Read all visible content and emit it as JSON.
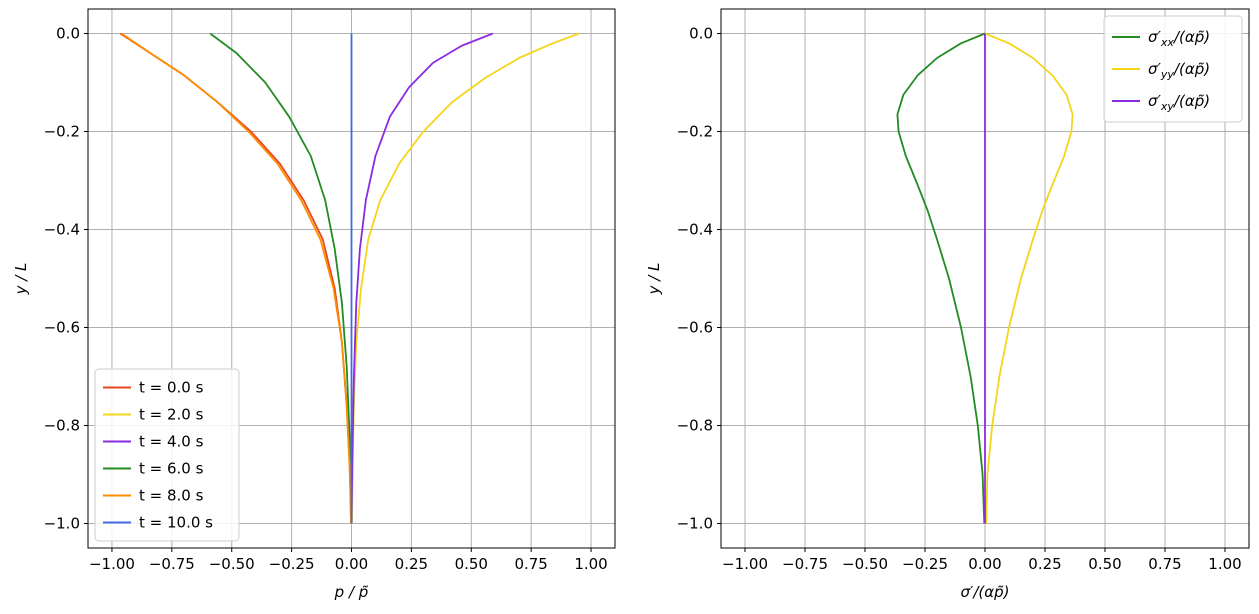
{
  "chart_data": [
    {
      "type": "line",
      "xlabel": "p / p̃",
      "ylabel": "y / L",
      "xlim": [
        -1.1,
        1.1
      ],
      "ylim": [
        -1.05,
        0.05
      ],
      "xticks": [
        -1.0,
        -0.75,
        -0.5,
        -0.25,
        0.0,
        0.25,
        0.5,
        0.75,
        1.0
      ],
      "xtick_labels": [
        "−1.00",
        "−0.75",
        "−0.50",
        "−0.25",
        "0.00",
        "0.25",
        "0.50",
        "0.75",
        "1.00"
      ],
      "yticks": [
        0.0,
        -0.2,
        -0.4,
        -0.6,
        -0.8,
        -1.0
      ],
      "ytick_labels": [
        "0.0",
        "−0.2",
        "−0.4",
        "−0.6",
        "−0.8",
        "−1.0"
      ],
      "grid": true,
      "legend_position": "lower-left",
      "series": [
        {
          "name": "t = 0.0 s",
          "color": "#e8481c",
          "x": [
            -0.965,
            -0.84,
            -0.7,
            -0.56,
            -0.42,
            -0.3,
            -0.2,
            -0.12,
            -0.07,
            -0.04,
            -0.02,
            -0.008,
            0.0
          ],
          "y": [
            0.0,
            -0.04,
            -0.085,
            -0.14,
            -0.2,
            -0.265,
            -0.34,
            -0.42,
            -0.52,
            -0.63,
            -0.76,
            -0.88,
            -1.0
          ]
        },
        {
          "name": "t = 2.0 s",
          "color": "#f5d41c",
          "x": [
            0.002,
            0.005,
            0.01,
            0.02,
            0.04,
            0.07,
            0.12,
            0.2,
            0.3,
            0.42,
            0.56,
            0.7,
            0.84,
            0.95
          ],
          "y": [
            -1.0,
            -0.88,
            -0.76,
            -0.63,
            -0.52,
            -0.42,
            -0.34,
            -0.265,
            -0.2,
            -0.14,
            -0.09,
            -0.05,
            -0.02,
            0.0
          ]
        },
        {
          "name": "t = 4.0 s",
          "color": "#8a2be2",
          "x": [
            0.0,
            0.004,
            0.01,
            0.02,
            0.035,
            0.06,
            0.1,
            0.16,
            0.24,
            0.34,
            0.46,
            0.59
          ],
          "y": [
            -1.0,
            -0.85,
            -0.7,
            -0.55,
            -0.44,
            -0.34,
            -0.25,
            -0.17,
            -0.11,
            -0.06,
            -0.025,
            0.0
          ]
        },
        {
          "name": "t = 6.0 s",
          "color": "#228b22",
          "x": [
            -0.59,
            -0.48,
            -0.36,
            -0.26,
            -0.17,
            -0.11,
            -0.07,
            -0.04,
            -0.02,
            -0.008,
            -0.002
          ],
          "y": [
            0.0,
            -0.04,
            -0.1,
            -0.17,
            -0.25,
            -0.34,
            -0.44,
            -0.55,
            -0.68,
            -0.82,
            -1.0
          ]
        },
        {
          "name": "t = 8.0 s",
          "color": "#ff8c00",
          "x": [
            -0.96,
            -0.84,
            -0.7,
            -0.56,
            -0.43,
            -0.31,
            -0.21,
            -0.13,
            -0.075,
            -0.04,
            -0.02,
            -0.008,
            -0.002
          ],
          "y": [
            0.0,
            -0.04,
            -0.085,
            -0.14,
            -0.2,
            -0.265,
            -0.34,
            -0.42,
            -0.52,
            -0.63,
            -0.76,
            -0.88,
            -1.0
          ]
        },
        {
          "name": "t = 10.0 s",
          "color": "#4169e1",
          "x": [
            0.0,
            0.0
          ],
          "y": [
            0.0,
            -1.0
          ]
        }
      ]
    },
    {
      "type": "line",
      "xlabel": "σ′/(αp̃)",
      "ylabel": "y / L",
      "xlim": [
        -1.1,
        1.1
      ],
      "ylim": [
        -1.05,
        0.05
      ],
      "xticks": [
        -1.0,
        -0.75,
        -0.5,
        -0.25,
        0.0,
        0.25,
        0.5,
        0.75,
        1.0
      ],
      "xtick_labels": [
        "−1.00",
        "−0.75",
        "−0.50",
        "−0.25",
        "0.00",
        "0.25",
        "0.50",
        "0.75",
        "1.00"
      ],
      "yticks": [
        0.0,
        -0.2,
        -0.4,
        -0.6,
        -0.8,
        -1.0
      ],
      "ytick_labels": [
        "0.0",
        "−0.2",
        "−0.4",
        "−0.6",
        "−0.8",
        "−1.0"
      ],
      "grid": true,
      "legend_position": "top-right",
      "series": [
        {
          "name": "σ′xx/(αp̃)",
          "name_parts": [
            "σ′",
            "xx",
            "/(αp̃)"
          ],
          "color": "#228b22",
          "x": [
            0.0,
            -0.1,
            -0.2,
            -0.28,
            -0.34,
            -0.365,
            -0.36,
            -0.33,
            -0.28,
            -0.24,
            -0.2,
            -0.15,
            -0.1,
            -0.06,
            -0.03,
            -0.01,
            -0.003
          ],
          "y": [
            0.0,
            -0.02,
            -0.05,
            -0.085,
            -0.125,
            -0.165,
            -0.2,
            -0.25,
            -0.31,
            -0.36,
            -0.42,
            -0.5,
            -0.6,
            -0.7,
            -0.8,
            -0.9,
            -1.0
          ]
        },
        {
          "name": "σ′yy/(αp̃)",
          "name_parts": [
            "σ′",
            "yy",
            "/(αp̃)"
          ],
          "color": "#f5d41c",
          "x": [
            0.0,
            0.1,
            0.2,
            0.28,
            0.34,
            0.365,
            0.36,
            0.33,
            0.28,
            0.24,
            0.2,
            0.15,
            0.1,
            0.06,
            0.03,
            0.01,
            0.005
          ],
          "y": [
            0.0,
            -0.02,
            -0.05,
            -0.085,
            -0.125,
            -0.165,
            -0.2,
            -0.25,
            -0.31,
            -0.36,
            -0.42,
            -0.5,
            -0.6,
            -0.7,
            -0.8,
            -0.9,
            -1.0
          ]
        },
        {
          "name": "σ′xy/(αp̃)",
          "name_parts": [
            "σ′",
            "xy",
            "/(αp̃)"
          ],
          "color": "#8a2be2",
          "x": [
            0.0,
            0.0
          ],
          "y": [
            0.0,
            -1.0
          ]
        }
      ]
    }
  ]
}
